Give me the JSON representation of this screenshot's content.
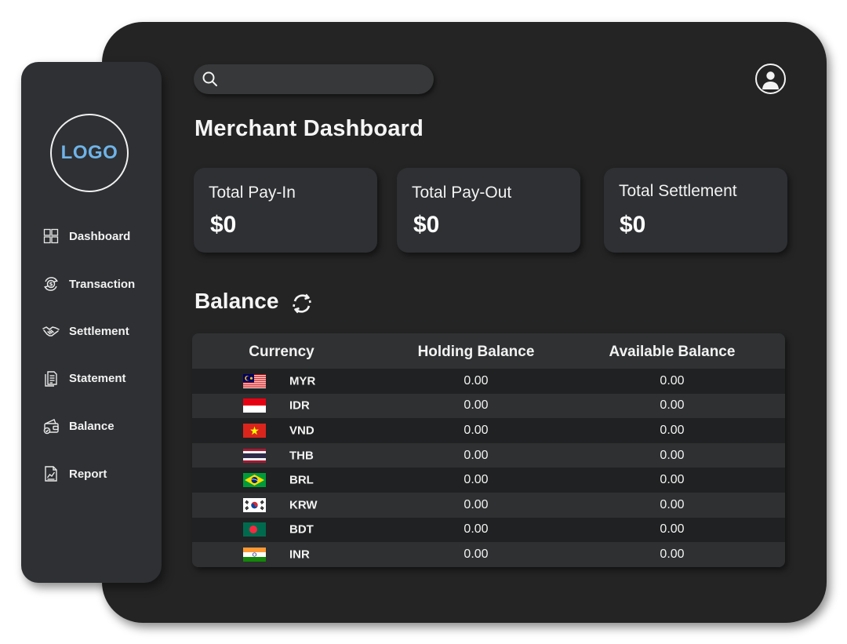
{
  "sidebar": {
    "logo_text": "LOGO",
    "items": [
      {
        "label": "Dashboard",
        "icon": "grid-icon"
      },
      {
        "label": "Transaction",
        "icon": "coin-cycle-icon"
      },
      {
        "label": "Settlement",
        "icon": "handshake-icon"
      },
      {
        "label": "Statement",
        "icon": "document-icon"
      },
      {
        "label": "Balance",
        "icon": "wallet-icon"
      },
      {
        "label": "Report",
        "icon": "report-chart-icon"
      }
    ]
  },
  "search": {
    "placeholder": "",
    "value": ""
  },
  "header": {
    "title": "Merchant Dashboard"
  },
  "cards": [
    {
      "title": "Total Pay-In",
      "value": "$0"
    },
    {
      "title": "Total Pay-Out",
      "value": "$0"
    },
    {
      "title": "Total Settlement",
      "value": "$0"
    }
  ],
  "balance": {
    "title": "Balance",
    "columns": [
      "Currency",
      "Holding Balance",
      "Available Balance"
    ],
    "rows": [
      {
        "currency": "MYR",
        "holding": "0.00",
        "available": "0.00"
      },
      {
        "currency": "IDR",
        "holding": "0.00",
        "available": "0.00"
      },
      {
        "currency": "VND",
        "holding": "0.00",
        "available": "0.00"
      },
      {
        "currency": "THB",
        "holding": "0.00",
        "available": "0.00"
      },
      {
        "currency": "BRL",
        "holding": "0.00",
        "available": "0.00"
      },
      {
        "currency": "KRW",
        "holding": "0.00",
        "available": "0.00"
      },
      {
        "currency": "BDT",
        "holding": "0.00",
        "available": "0.00"
      },
      {
        "currency": "INR",
        "holding": "0.00",
        "available": "0.00"
      }
    ]
  },
  "colors": {
    "background": "#242424",
    "panel": "#2e3033",
    "logo_text": "#6fb3e8",
    "text": "#f2f2f2"
  }
}
